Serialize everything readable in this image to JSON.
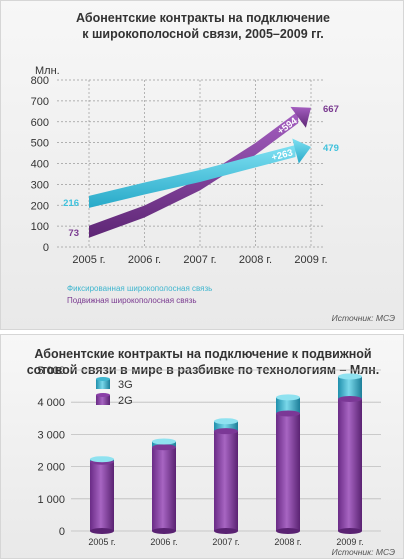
{
  "chart_data": [
    {
      "type": "line",
      "title_lines": [
        "Абонентские контракты на подключение",
        "к широкополосной связи, 2005–2009 гг."
      ],
      "ylabel": "Млн.",
      "categories": [
        "2005 г.",
        "2006 г.",
        "2007 г.",
        "2008 г.",
        "2009 г."
      ],
      "yticks": [
        0,
        100,
        200,
        300,
        400,
        500,
        600,
        700,
        800
      ],
      "ylim": [
        0,
        800
      ],
      "series": [
        {
          "name": "Фиксированная широкополосная связь",
          "color": "#3fc1dc",
          "values": [
            216,
            280,
            340,
            410,
            479
          ],
          "start_label": "216",
          "end_label": "479",
          "change_label": "+263"
        },
        {
          "name": "Подвижная широкополосная связь",
          "color": "#7a3a90",
          "values": [
            73,
            170,
            300,
            470,
            667
          ],
          "start_label": "73",
          "end_label": "667",
          "change_label": "+594"
        }
      ],
      "source": "Источник: МСЭ"
    },
    {
      "type": "bar",
      "title_lines": [
        "Абонентские контракты на подключение к подвижной",
        "сотовой связи в мире в разбивке по технологиям – Млн."
      ],
      "categories": [
        "2005 г.",
        "2006 г.",
        "2007 г.",
        "2008 г.",
        "2009 г."
      ],
      "yticks": [
        "0",
        "1 000",
        "2 000",
        "3 000",
        "4 000",
        "5 000"
      ],
      "ylim": [
        0,
        5000
      ],
      "series": [
        {
          "name": "2G",
          "color": "#8a3fa6",
          "values": [
            2150,
            2600,
            3100,
            3650,
            4100
          ]
        },
        {
          "name": "3G",
          "color": "#3fb6cf",
          "values": [
            80,
            180,
            310,
            500,
            700
          ]
        }
      ],
      "source": "Источник: МСЭ"
    }
  ]
}
